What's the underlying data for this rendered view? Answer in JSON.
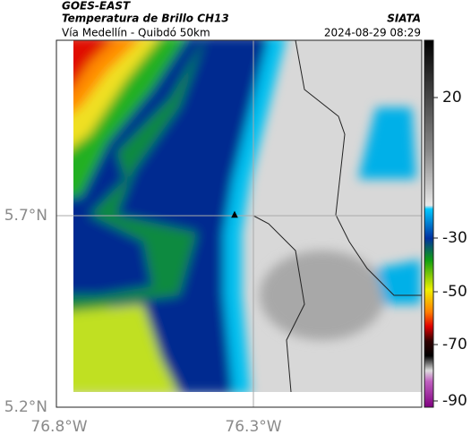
{
  "header": {
    "title": "GOES-EAST",
    "subtitle": "Temperatura de Brillo CH13",
    "region": "Vía Medellín - Quibdó 50km",
    "source": "SIATA",
    "datetime": "2024-08-29 08:29"
  },
  "axes": {
    "lat_ticks": [
      "5.7°N",
      "5.2°N"
    ],
    "lon_ticks": [
      "76.8°W",
      "76.3°W"
    ]
  },
  "colorbar": {
    "ticks": [
      20,
      -30,
      -50,
      -70,
      -90
    ]
  }
}
